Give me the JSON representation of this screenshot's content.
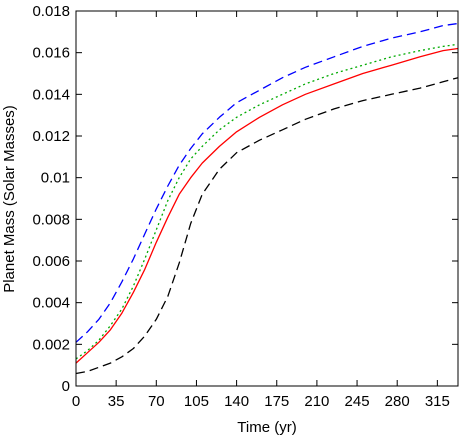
{
  "chart_data": {
    "type": "line",
    "title": "",
    "xlabel": "Time (yr)",
    "ylabel": "Planet Mass (Solar Masses)",
    "xlim": [
      0,
      333
    ],
    "ylim": [
      0,
      0.018
    ],
    "xticks": [
      0,
      35,
      70,
      105,
      140,
      175,
      210,
      245,
      280,
      315
    ],
    "yticks": [
      0,
      0.002,
      0.004,
      0.006,
      0.008,
      0.01,
      0.012,
      0.014,
      0.016,
      0.018
    ],
    "x_tick_labels": [
      "0",
      "35",
      "70",
      "105",
      "140",
      "175",
      "210",
      "245",
      "280",
      "315"
    ],
    "y_tick_labels": [
      "0",
      "0.002",
      "0.004",
      "0.006",
      "0.008",
      "0.01",
      "0.012",
      "0.014",
      "0.016",
      "0.018"
    ],
    "grid": false,
    "legend": "none",
    "series": [
      {
        "color": "#0000ff",
        "style": "dashed",
        "x": [
          0,
          10,
          20,
          30,
          40,
          50,
          60,
          70,
          80,
          90,
          100,
          110,
          125,
          140,
          160,
          180,
          200,
          225,
          250,
          275,
          300,
          320,
          333
        ],
        "y": [
          0.0021,
          0.0026,
          0.0032,
          0.004,
          0.005,
          0.0061,
          0.0073,
          0.0085,
          0.0096,
          0.0106,
          0.0114,
          0.0121,
          0.0129,
          0.0136,
          0.0142,
          0.0148,
          0.0153,
          0.0158,
          0.0163,
          0.0167,
          0.017,
          0.0173,
          0.0174
        ]
      },
      {
        "color": "#00aa00",
        "style": "dotted",
        "x": [
          0,
          10,
          20,
          30,
          40,
          50,
          60,
          70,
          80,
          90,
          100,
          110,
          125,
          140,
          160,
          180,
          200,
          225,
          250,
          275,
          300,
          320,
          333
        ],
        "y": [
          0.0013,
          0.0017,
          0.0022,
          0.0029,
          0.0037,
          0.0048,
          0.0061,
          0.0075,
          0.0089,
          0.01,
          0.0109,
          0.0115,
          0.0123,
          0.0129,
          0.0135,
          0.014,
          0.0145,
          0.015,
          0.0154,
          0.0158,
          0.0161,
          0.0163,
          0.0164
        ]
      },
      {
        "color": "#ff0000",
        "style": "solid",
        "x": [
          0,
          10,
          20,
          30,
          40,
          50,
          60,
          70,
          80,
          90,
          100,
          110,
          125,
          140,
          160,
          180,
          200,
          225,
          250,
          275,
          300,
          320,
          333
        ],
        "y": [
          0.0011,
          0.0016,
          0.0021,
          0.0027,
          0.0035,
          0.0045,
          0.0056,
          0.0069,
          0.0081,
          0.0092,
          0.01,
          0.0107,
          0.0115,
          0.0122,
          0.0129,
          0.0135,
          0.014,
          0.0145,
          0.015,
          0.0154,
          0.0158,
          0.0161,
          0.0162
        ]
      },
      {
        "color": "#000000",
        "style": "dashed",
        "x": [
          0,
          10,
          20,
          30,
          40,
          50,
          60,
          70,
          80,
          90,
          100,
          110,
          125,
          140,
          160,
          180,
          200,
          225,
          250,
          275,
          300,
          320,
          333
        ],
        "y": [
          0.0006,
          0.0007,
          0.0009,
          0.0011,
          0.0014,
          0.0018,
          0.0024,
          0.0032,
          0.0043,
          0.0059,
          0.0078,
          0.0092,
          0.0104,
          0.0112,
          0.0118,
          0.0123,
          0.0128,
          0.0133,
          0.0137,
          0.014,
          0.0143,
          0.0146,
          0.0148
        ]
      }
    ]
  }
}
